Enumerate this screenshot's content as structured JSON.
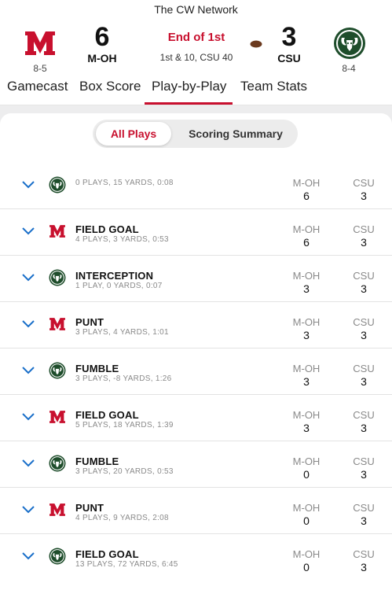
{
  "network": "The CW Network",
  "scoreboard": {
    "home": {
      "abbr": "M-OH",
      "score": "6",
      "record": "8-5",
      "logo_icon": "miami-m-logo-icon"
    },
    "away": {
      "abbr": "CSU",
      "score": "3",
      "record": "8-4",
      "logo_icon": "csu-ram-logo-icon"
    },
    "status": "End of 1st",
    "situation": "1st & 10, CSU 40",
    "possession_icon": "football-icon"
  },
  "tabs": [
    {
      "label": "Gamecast",
      "active": false
    },
    {
      "label": "Box Score",
      "active": false
    },
    {
      "label": "Play-by-Play",
      "active": true
    },
    {
      "label": "Team Stats",
      "active": false
    }
  ],
  "filter": {
    "all_plays": "All Plays",
    "scoring_summary": "Scoring Summary",
    "selected": "All Plays"
  },
  "drives": [
    {
      "team": "CSU",
      "result": "",
      "summary": "0 PLAYS, 15 YARDS, 0:08",
      "home_label": "M-OH",
      "home_score": "6",
      "away_label": "CSU",
      "away_score": "3"
    },
    {
      "team": "M-OH",
      "result": "FIELD GOAL",
      "summary": "4 PLAYS, 3 YARDS, 0:53",
      "home_label": "M-OH",
      "home_score": "6",
      "away_label": "CSU",
      "away_score": "3"
    },
    {
      "team": "CSU",
      "result": "INTERCEPTION",
      "summary": "1 PLAY, 0 YARDS, 0:07",
      "home_label": "M-OH",
      "home_score": "3",
      "away_label": "CSU",
      "away_score": "3"
    },
    {
      "team": "M-OH",
      "result": "PUNT",
      "summary": "3 PLAYS, 4 YARDS, 1:01",
      "home_label": "M-OH",
      "home_score": "3",
      "away_label": "CSU",
      "away_score": "3"
    },
    {
      "team": "CSU",
      "result": "FUMBLE",
      "summary": "3 PLAYS, -8 YARDS, 1:26",
      "home_label": "M-OH",
      "home_score": "3",
      "away_label": "CSU",
      "away_score": "3"
    },
    {
      "team": "M-OH",
      "result": "FIELD GOAL",
      "summary": "5 PLAYS, 18 YARDS, 1:39",
      "home_label": "M-OH",
      "home_score": "3",
      "away_label": "CSU",
      "away_score": "3"
    },
    {
      "team": "CSU",
      "result": "FUMBLE",
      "summary": "3 PLAYS, 20 YARDS, 0:53",
      "home_label": "M-OH",
      "home_score": "0",
      "away_label": "CSU",
      "away_score": "3"
    },
    {
      "team": "M-OH",
      "result": "PUNT",
      "summary": "4 PLAYS, 9 YARDS, 2:08",
      "home_label": "M-OH",
      "home_score": "0",
      "away_label": "CSU",
      "away_score": "3"
    },
    {
      "team": "CSU",
      "result": "FIELD GOAL",
      "summary": "13 PLAYS, 72 YARDS, 6:45",
      "home_label": "M-OH",
      "home_score": "0",
      "away_label": "CSU",
      "away_score": "3"
    }
  ],
  "colors": {
    "accent_red": "#c8102e",
    "miami_red": "#c8102e",
    "csu_green": "#1e4d2b",
    "chevron_blue": "#1a6fc9",
    "muted_text": "#8a8a8a"
  }
}
